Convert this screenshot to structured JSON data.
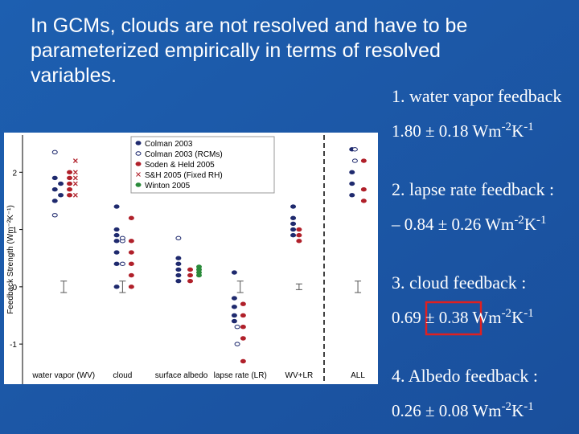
{
  "title": "In GCMs, clouds are not resolved and have to be parameterized empirically in terms of resolved variables.",
  "chart_data": {
    "type": "scatter",
    "y_label": "Feedback Strength (Wm⁻²K⁻¹)",
    "categories": [
      "water vapor (WV)",
      "cloud",
      "surface albedo",
      "lapse rate (LR)",
      "WV+LR",
      "ALL"
    ],
    "xlim": [
      0.3,
      6.3
    ],
    "ylim": [
      -1.7,
      2.65
    ],
    "yticks": [
      -1,
      0,
      1,
      2
    ],
    "series": [
      {
        "name": "Colman 2003",
        "color": "#1f2a6e",
        "marker": "dot",
        "x": [
          0.85,
          0.85,
          0.85,
          0.95,
          0.95,
          1.9,
          1.9,
          1.9,
          1.9,
          1.9,
          1.9,
          1.9,
          2.95,
          2.95,
          2.95,
          2.95,
          2.95,
          3.9,
          3.9,
          3.9,
          3.9,
          3.9,
          4.9,
          4.9,
          4.9,
          4.9,
          4.9,
          5.9,
          5.9,
          5.9,
          5.9
        ],
        "values": [
          1.5,
          1.7,
          1.9,
          1.6,
          1.8,
          0.0,
          0.4,
          0.6,
          0.8,
          0.9,
          1.0,
          1.4,
          0.1,
          0.2,
          0.3,
          0.4,
          0.5,
          -0.2,
          -0.35,
          -0.5,
          -0.6,
          0.25,
          0.9,
          1.0,
          1.1,
          1.2,
          1.4,
          1.6,
          1.8,
          2.0,
          2.4
        ]
      },
      {
        "name": "Colman 2003 (RCMs)",
        "color": "#1f2a6e",
        "marker": "circle",
        "x": [
          0.85,
          0.85,
          2.0,
          2.0,
          2.0,
          2.95,
          3.95,
          3.95,
          5.95,
          5.95
        ],
        "values": [
          1.25,
          2.35,
          0.4,
          0.8,
          0.85,
          0.85,
          -0.7,
          -1.0,
          2.4,
          2.2
        ]
      },
      {
        "name": "Soden & Held 2005",
        "color": "#b0202a",
        "marker": "dot",
        "x": [
          1.1,
          1.1,
          1.1,
          1.1,
          1.1,
          2.15,
          2.15,
          2.15,
          2.15,
          2.15,
          2.15,
          3.15,
          3.15,
          3.15,
          4.05,
          4.05,
          4.05,
          4.05,
          4.05,
          5.0,
          5.0,
          5.0,
          6.1,
          6.1,
          6.1
        ],
        "values": [
          1.6,
          1.7,
          1.8,
          1.9,
          2.0,
          0.0,
          0.2,
          0.4,
          0.6,
          0.8,
          1.2,
          0.1,
          0.2,
          0.3,
          -0.3,
          -0.5,
          -0.7,
          -0.9,
          -1.3,
          0.8,
          0.9,
          1.0,
          1.5,
          1.7,
          2.2
        ]
      },
      {
        "name": "S&H 2005 (Fixed RH)",
        "color": "#b0202a",
        "marker": "x",
        "x": [
          1.2,
          1.2,
          1.2,
          1.2,
          1.2
        ],
        "values": [
          1.6,
          1.8,
          1.9,
          2.0,
          2.2
        ]
      },
      {
        "name": "Winton 2005",
        "color": "#2a8a3a",
        "marker": "dot",
        "x": [
          3.3,
          3.3,
          3.3,
          3.3
        ],
        "values": [
          0.2,
          0.25,
          0.3,
          0.35
        ]
      }
    ],
    "error_bars": {
      "x": [
        1,
        2,
        4,
        5,
        6
      ],
      "values": [
        0,
        0,
        0,
        0,
        0
      ],
      "errors": [
        0.1,
        0.1,
        0.1,
        0.05,
        0.1
      ]
    }
  },
  "feedbacks": [
    {
      "label": "1. water vapor feedback",
      "value": "1.80 ± 0.18 Wm",
      "exp1": "-2",
      "unit": "K",
      "exp2": "-1"
    },
    {
      "label": "2. lapse rate feedback :",
      "value": "– 0.84 ± 0.26 Wm",
      "exp1": "-2",
      "unit": "K",
      "exp2": "-1"
    },
    {
      "label": "3. cloud feedback :",
      "value": "0.69 ± 0.38 Wm",
      "exp1": "-2",
      "unit": "K",
      "exp2": "-1"
    },
    {
      "label": "4. Albedo feedback :",
      "value": "0.26 ± 0.08 Wm",
      "exp1": "-2",
      "unit": "K",
      "exp2": "-1"
    }
  ]
}
